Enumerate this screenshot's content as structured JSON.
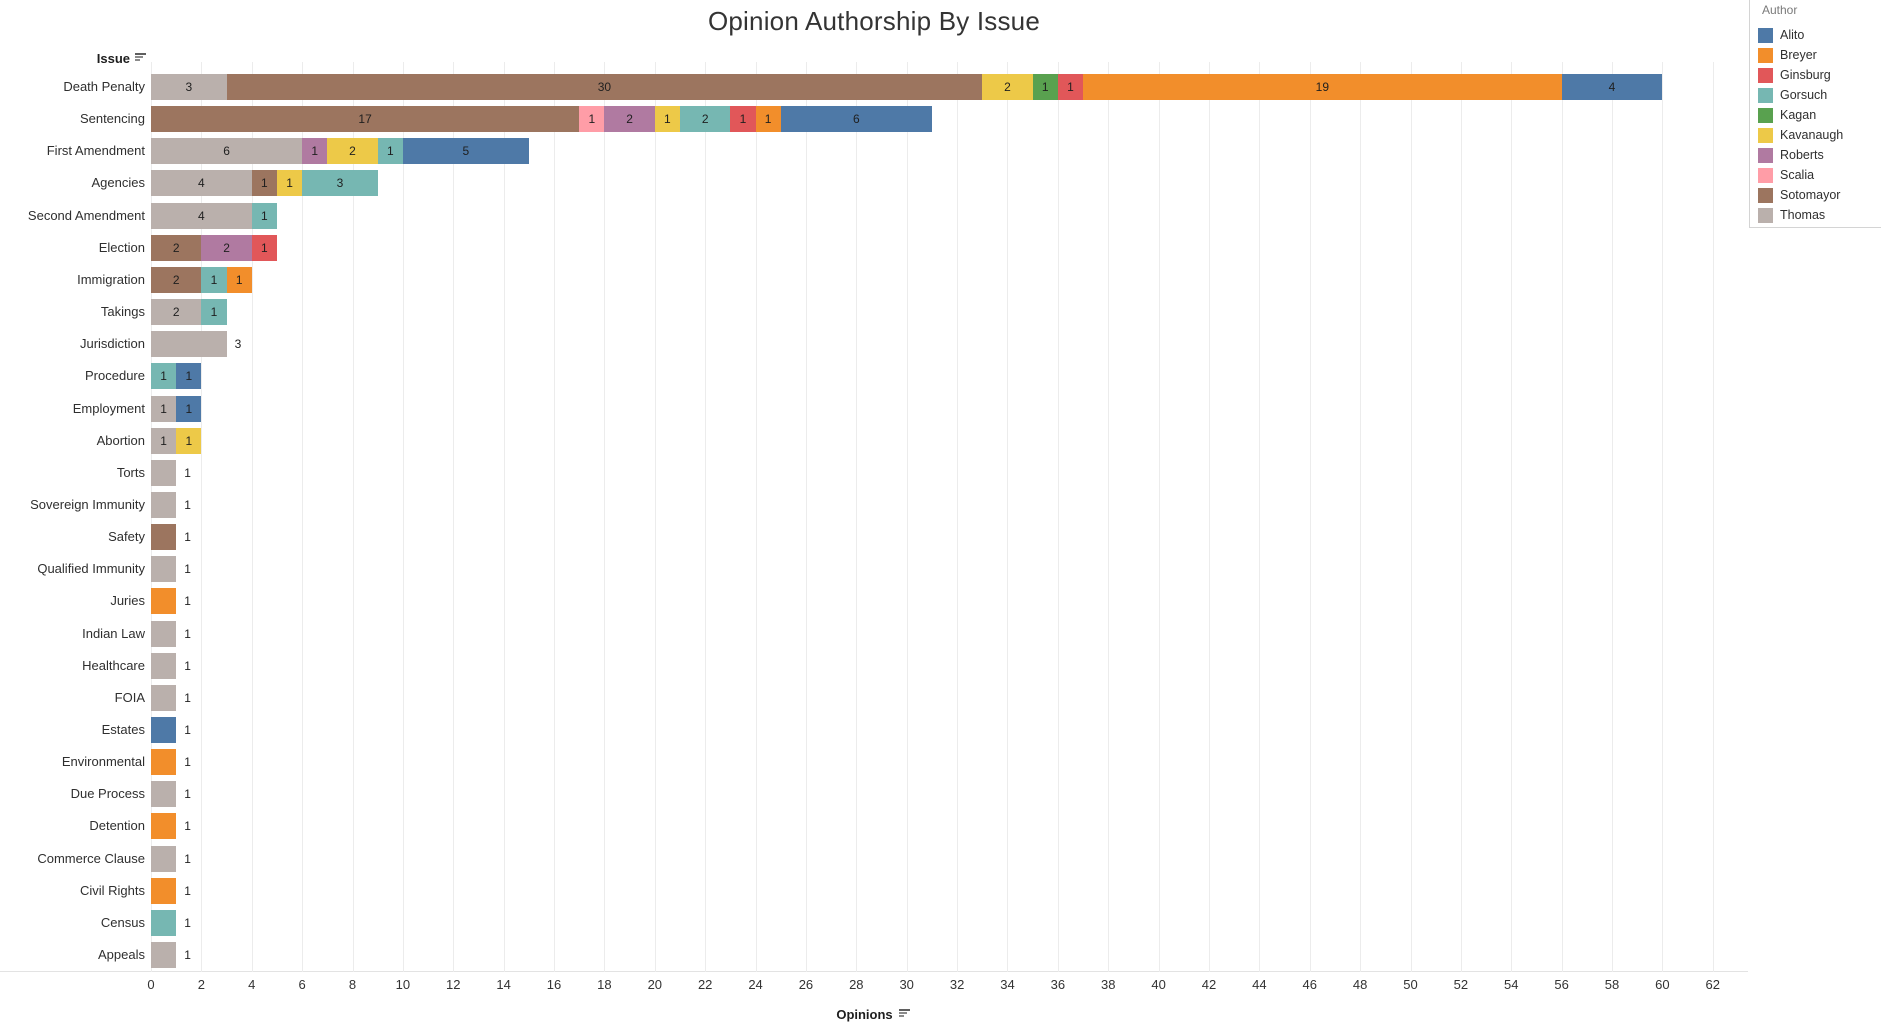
{
  "title": "Opinion Authorship By Issue",
  "issue_header": "Issue",
  "xaxis_title": "Opinions",
  "legend": {
    "title": "Author",
    "items": [
      {
        "label": "Alito",
        "color": "#4e79a7"
      },
      {
        "label": "Breyer",
        "color": "#f28e2b"
      },
      {
        "label": "Ginsburg",
        "color": "#e15759"
      },
      {
        "label": "Gorsuch",
        "color": "#76b7b2"
      },
      {
        "label": "Kagan",
        "color": "#59a14f"
      },
      {
        "label": "Kavanaugh",
        "color": "#edc948"
      },
      {
        "label": "Roberts",
        "color": "#b07aa1"
      },
      {
        "label": "Scalia",
        "color": "#ff9da7"
      },
      {
        "label": "Sotomayor",
        "color": "#9c755f"
      },
      {
        "label": "Thomas",
        "color": "#bab0ac"
      }
    ]
  },
  "chart_data": {
    "type": "bar",
    "orientation": "horizontal-stacked",
    "title": "Opinion Authorship By Issue",
    "xlabel": "Opinions",
    "ylabel": "Issue",
    "xlim": [
      0,
      62
    ],
    "xtick_step": 2,
    "grid": "vertical-on",
    "legend_position": "top-right",
    "colors": {
      "Alito": "#4e79a7",
      "Breyer": "#f28e2b",
      "Ginsburg": "#e15759",
      "Gorsuch": "#76b7b2",
      "Kagan": "#59a14f",
      "Kavanaugh": "#edc948",
      "Roberts": "#b07aa1",
      "Scalia": "#ff9da7",
      "Sotomayor": "#9c755f",
      "Thomas": "#bab0ac"
    },
    "rows": [
      {
        "issue": "Death Penalty",
        "segments": [
          [
            "Thomas",
            3
          ],
          [
            "Sotomayor",
            30
          ],
          [
            "Kavanaugh",
            2
          ],
          [
            "Kagan",
            1
          ],
          [
            "Ginsburg",
            1
          ],
          [
            "Breyer",
            19
          ],
          [
            "Alito",
            4
          ]
        ]
      },
      {
        "issue": "Sentencing",
        "segments": [
          [
            "Sotomayor",
            17
          ],
          [
            "Scalia",
            1
          ],
          [
            "Roberts",
            2
          ],
          [
            "Kavanaugh",
            1
          ],
          [
            "Gorsuch",
            2
          ],
          [
            "Ginsburg",
            1
          ],
          [
            "Breyer",
            1
          ],
          [
            "Alito",
            6
          ]
        ]
      },
      {
        "issue": "First Amendment",
        "segments": [
          [
            "Thomas",
            6
          ],
          [
            "Roberts",
            1
          ],
          [
            "Kavanaugh",
            2
          ],
          [
            "Gorsuch",
            1
          ],
          [
            "Alito",
            5
          ]
        ]
      },
      {
        "issue": "Agencies",
        "segments": [
          [
            "Thomas",
            4
          ],
          [
            "Sotomayor",
            1
          ],
          [
            "Kavanaugh",
            1
          ],
          [
            "Gorsuch",
            3
          ]
        ]
      },
      {
        "issue": "Second Amendment",
        "segments": [
          [
            "Thomas",
            4
          ],
          [
            "Gorsuch",
            1
          ]
        ]
      },
      {
        "issue": "Election",
        "segments": [
          [
            "Sotomayor",
            2
          ],
          [
            "Roberts",
            2
          ],
          [
            "Ginsburg",
            1
          ]
        ]
      },
      {
        "issue": "Immigration",
        "segments": [
          [
            "Sotomayor",
            2
          ],
          [
            "Gorsuch",
            1
          ],
          [
            "Breyer",
            1
          ]
        ]
      },
      {
        "issue": "Takings",
        "segments": [
          [
            "Thomas",
            2
          ],
          [
            "Gorsuch",
            1
          ]
        ]
      },
      {
        "issue": "Jurisdiction",
        "segments": [
          [
            "Thomas",
            3
          ]
        ]
      },
      {
        "issue": "Procedure",
        "segments": [
          [
            "Gorsuch",
            1
          ],
          [
            "Alito",
            1
          ]
        ]
      },
      {
        "issue": "Employment",
        "segments": [
          [
            "Thomas",
            1
          ],
          [
            "Alito",
            1
          ]
        ]
      },
      {
        "issue": "Abortion",
        "segments": [
          [
            "Thomas",
            1
          ],
          [
            "Kavanaugh",
            1
          ]
        ]
      },
      {
        "issue": "Torts",
        "segments": [
          [
            "Thomas",
            1
          ]
        ]
      },
      {
        "issue": "Sovereign Immunity",
        "segments": [
          [
            "Thomas",
            1
          ]
        ]
      },
      {
        "issue": "Safety",
        "segments": [
          [
            "Sotomayor",
            1
          ]
        ]
      },
      {
        "issue": "Qualified Immunity",
        "segments": [
          [
            "Thomas",
            1
          ]
        ]
      },
      {
        "issue": "Juries",
        "segments": [
          [
            "Breyer",
            1
          ]
        ]
      },
      {
        "issue": "Indian Law",
        "segments": [
          [
            "Thomas",
            1
          ]
        ]
      },
      {
        "issue": "Healthcare",
        "segments": [
          [
            "Thomas",
            1
          ]
        ]
      },
      {
        "issue": "FOIA",
        "segments": [
          [
            "Thomas",
            1
          ]
        ]
      },
      {
        "issue": "Estates",
        "segments": [
          [
            "Alito",
            1
          ]
        ]
      },
      {
        "issue": "Environmental",
        "segments": [
          [
            "Breyer",
            1
          ]
        ]
      },
      {
        "issue": "Due Process",
        "segments": [
          [
            "Thomas",
            1
          ]
        ]
      },
      {
        "issue": "Detention",
        "segments": [
          [
            "Breyer",
            1
          ]
        ]
      },
      {
        "issue": "Commerce Clause",
        "segments": [
          [
            "Thomas",
            1
          ]
        ]
      },
      {
        "issue": "Civil Rights",
        "segments": [
          [
            "Breyer",
            1
          ]
        ]
      },
      {
        "issue": "Census",
        "segments": [
          [
            "Gorsuch",
            1
          ]
        ]
      },
      {
        "issue": "Appeals",
        "segments": [
          [
            "Thomas",
            1
          ]
        ]
      }
    ]
  }
}
